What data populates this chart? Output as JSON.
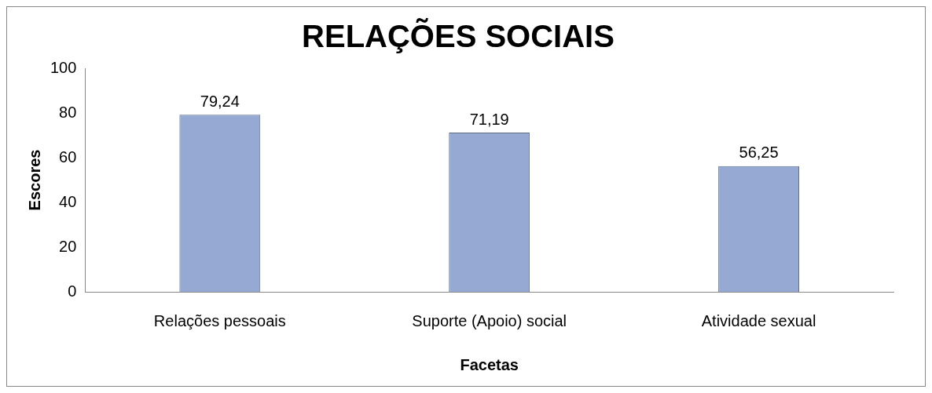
{
  "chart_data": {
    "type": "bar",
    "title": "RELAÇÕES SOCIAIS",
    "xlabel": "Facetas",
    "ylabel": "Escores",
    "categories": [
      "Relações pessoais",
      "Suporte (Apoio) social",
      "Atividade sexual"
    ],
    "values": [
      79.24,
      71.19,
      56.25
    ],
    "color": "#95a9d3",
    "value_labels": [
      "79,24",
      "71,19",
      "56,25"
    ],
    "ylim": [
      0,
      100
    ],
    "yticks": [
      0,
      20,
      40,
      60,
      80,
      100
    ],
    "grid": false,
    "legend": false
  }
}
